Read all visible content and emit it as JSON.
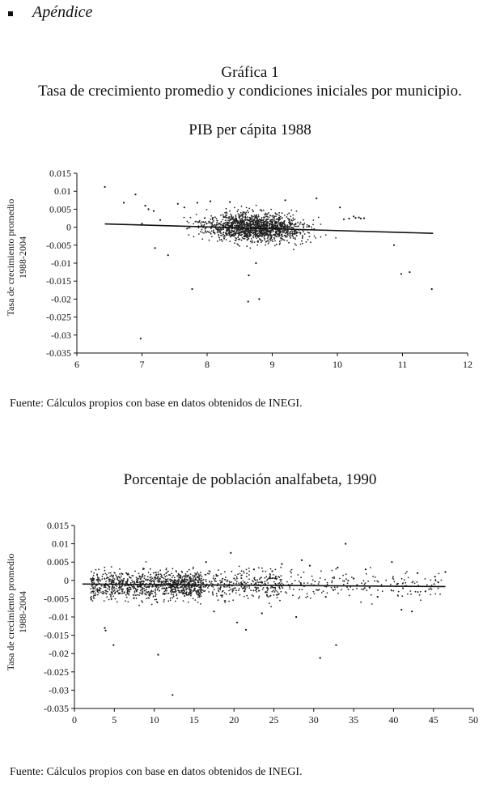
{
  "header": {
    "section_title": "Apéndice"
  },
  "figure": {
    "label": "Gráfica 1",
    "title": "Tasa de crecimiento promedio y condiciones iniciales por municipio."
  },
  "sources": [
    "Fuente: Cálculos propios con base en datos obtenidos de INEGI.",
    "Fuente: Cálculos propios con base en datos obtenidos de INEGI."
  ],
  "chart_data": [
    {
      "type": "scatter",
      "title": "PIB per cápita 1988",
      "ylabel_lines": [
        "Tasa de crecimiento promedio",
        "1988-2004"
      ],
      "xlabel": "",
      "xlim": [
        6,
        12
      ],
      "ylim": [
        -0.035,
        0.015
      ],
      "xticks": [
        6,
        7,
        8,
        9,
        10,
        11,
        12
      ],
      "yticks": [
        0.015,
        0.01,
        0.005,
        0,
        -0.005,
        -0.01,
        -0.015,
        -0.02,
        -0.025,
        -0.03,
        -0.035
      ],
      "xtick_labels": [
        "6",
        "7",
        "8",
        "9",
        "10",
        "11",
        "12"
      ],
      "ytick_labels": [
        "0.015",
        "0.01",
        "0.005",
        "0",
        "-0.005",
        "-0.01",
        "-0.015",
        "-0.02",
        "-0.025",
        "-0.03",
        "-0.035"
      ],
      "grid": false,
      "fit_line": {
        "x": [
          6.43,
          11.47
        ],
        "y": [
          0.0009,
          -0.0017
        ]
      },
      "points": [
        [
          6.43,
          0.0112
        ],
        [
          6.72,
          0.0068
        ],
        [
          6.9,
          0.0091
        ],
        [
          6.98,
          -0.031
        ],
        [
          7.05,
          0.006
        ],
        [
          7.0,
          0.001
        ],
        [
          7.1,
          0.005
        ],
        [
          7.18,
          0.0045
        ],
        [
          7.2,
          -0.0058
        ],
        [
          7.28,
          0.002
        ],
        [
          7.4,
          -0.0078
        ],
        [
          7.77,
          -0.0172
        ],
        [
          8.63,
          -0.0207
        ],
        [
          8.8,
          -0.02
        ],
        [
          8.64,
          -0.0134
        ],
        [
          8.75,
          -0.01
        ],
        [
          10.87,
          -0.005
        ],
        [
          10.98,
          -0.013
        ],
        [
          11.11,
          -0.0125
        ],
        [
          11.45,
          -0.0172
        ],
        [
          9.68,
          0.008
        ],
        [
          9.2,
          0.0075
        ],
        [
          10.04,
          0.0055
        ],
        [
          10.25,
          0.003
        ],
        [
          10.41,
          0.0025
        ],
        [
          10.33,
          0.0027
        ],
        [
          10.18,
          0.0024
        ],
        [
          10.1,
          0.0022
        ],
        [
          10.28,
          0.0026
        ],
        [
          10.36,
          0.0024
        ],
        [
          7.55,
          0.0065
        ],
        [
          7.65,
          0.0055
        ],
        [
          7.85,
          0.0068
        ],
        [
          8.05,
          0.0072
        ],
        [
          8.35,
          0.007
        ]
      ]
    },
    {
      "type": "scatter",
      "title": "Porcentaje de población analfabeta, 1990",
      "ylabel_lines": [
        "Tasa de crecimiento promedio",
        "1988-2004"
      ],
      "xlabel": "",
      "xlim": [
        0,
        50
      ],
      "ylim": [
        -0.035,
        0.015
      ],
      "xticks": [
        0,
        5,
        10,
        15,
        20,
        25,
        30,
        35,
        40,
        45,
        50
      ],
      "yticks": [
        0.015,
        0.01,
        0.005,
        0,
        -0.005,
        -0.01,
        -0.015,
        -0.02,
        -0.025,
        -0.03,
        -0.035
      ],
      "xtick_labels": [
        "0",
        "5",
        "10",
        "15",
        "20",
        "25",
        "30",
        "35",
        "40",
        "45",
        "50"
      ],
      "ytick_labels": [
        "0.015",
        "0.01",
        "0.005",
        "0",
        "-0.005",
        "-0.01",
        "-0.015",
        "-0.02",
        "-0.025",
        "-0.03",
        "-0.035"
      ],
      "grid": false,
      "fit_line": {
        "x": [
          1.0,
          46.5
        ],
        "y": [
          -0.001,
          -0.0017
        ]
      },
      "points": [
        [
          3.8,
          -0.013
        ],
        [
          3.9,
          -0.0137
        ],
        [
          4.9,
          -0.0177
        ],
        [
          10.5,
          -0.0203
        ],
        [
          12.3,
          -0.0313
        ],
        [
          30.8,
          -0.0212
        ],
        [
          32.8,
          -0.0177
        ],
        [
          34.0,
          0.01
        ],
        [
          20.4,
          -0.0115
        ],
        [
          21.5,
          -0.0135
        ],
        [
          19.6,
          0.0075
        ],
        [
          39.8,
          0.005
        ],
        [
          41.0,
          -0.008
        ],
        [
          42.3,
          -0.0085
        ],
        [
          45.2,
          0.001
        ],
        [
          45.6,
          -0.0005
        ],
        [
          46.5,
          0.0023
        ],
        [
          36.5,
          0.003
        ],
        [
          38.0,
          -0.0045
        ],
        [
          43.0,
          0.002
        ],
        [
          27.8,
          -0.01
        ],
        [
          29.5,
          0.004
        ],
        [
          33.0,
          0.0035
        ],
        [
          37.0,
          -0.002
        ],
        [
          31.5,
          -0.0045
        ],
        [
          35.0,
          0.0005
        ],
        [
          40.5,
          -0.001
        ],
        [
          44.0,
          -0.003
        ],
        [
          28.5,
          0.0055
        ],
        [
          26.0,
          0.0045
        ],
        [
          22.5,
          0.003
        ],
        [
          23.5,
          -0.009
        ],
        [
          24.8,
          0.0025
        ],
        [
          17.5,
          -0.0085
        ],
        [
          16.5,
          0.005
        ]
      ]
    }
  ]
}
